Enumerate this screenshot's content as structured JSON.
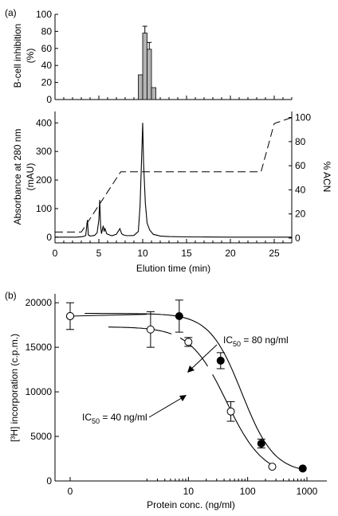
{
  "chart_data": [
    {
      "panel": "(a)",
      "type": "bar",
      "ylabel_lines": [
        "B-cell inhibition",
        "(%)"
      ],
      "ylim": [
        0,
        100
      ],
      "yticks": [
        "0",
        "20",
        "40",
        "60",
        "80",
        "100"
      ],
      "xlim": [
        0,
        27
      ],
      "bins": [
        {
          "x": 9.75,
          "value": 29,
          "err": 0
        },
        {
          "x": 10.25,
          "value": 78,
          "err": 8
        },
        {
          "x": 10.75,
          "value": 59,
          "err": 8
        },
        {
          "x": 11.25,
          "value": 14,
          "err": 0
        }
      ]
    },
    {
      "panel": "(a)",
      "type": "line",
      "xlabel": "Elution time (min)",
      "ylabel_lines": [
        "Absorbance at 280 nm",
        "(mAU)"
      ],
      "y2label": "% ACN",
      "xlim": [
        0,
        27
      ],
      "ylim": [
        -20,
        440
      ],
      "y2lim": [
        -4,
        105
      ],
      "xticks": [
        "0",
        "5",
        "10",
        "15",
        "20",
        "25"
      ],
      "yticks": [
        "0",
        "100",
        "200",
        "300",
        "400"
      ],
      "y2ticks": [
        "0",
        "20",
        "40",
        "60",
        "80",
        "100"
      ],
      "series": [
        {
          "role": "absorbance",
          "x": [
            0,
            2.5,
            3.2,
            3.5,
            3.7,
            3.8,
            4.0,
            4.5,
            4.8,
            5.0,
            5.1,
            5.2,
            5.3,
            5.5,
            5.6,
            5.7,
            5.9,
            6.0,
            6.2,
            6.5,
            7.0,
            7.4,
            7.6,
            7.8,
            8.2,
            9.0,
            9.5,
            9.7,
            9.9,
            10.0,
            10.1,
            10.3,
            10.5,
            10.8,
            11.2,
            12.0,
            13.0,
            15.0,
            20.0,
            27.0
          ],
          "y": [
            0,
            0,
            2,
            6,
            60,
            8,
            4,
            6,
            15,
            60,
            130,
            40,
            12,
            40,
            20,
            30,
            12,
            10,
            8,
            5,
            10,
            30,
            12,
            8,
            5,
            6,
            20,
            110,
            300,
            400,
            260,
            120,
            50,
            25,
            10,
            4,
            2,
            1,
            0,
            0
          ]
        },
        {
          "role": "acn_gradient",
          "axis": "right",
          "x": [
            0,
            3,
            7.5,
            23.5,
            25,
            27
          ],
          "y": [
            5,
            5,
            55,
            55,
            95,
            100
          ]
        }
      ]
    },
    {
      "panel": "(b)",
      "type": "scatter",
      "xlabel": "Protein conc. (ng/ml)",
      "ylabel": "[³H] incorporation (c.p.m.)",
      "xticks": [
        "0",
        "10",
        "100",
        "1000"
      ],
      "yticks": [
        "0",
        "5000",
        "10000",
        "15000",
        "20000"
      ],
      "ylim": [
        0,
        21000
      ],
      "series": [
        {
          "marker": "filled",
          "x": [
            0,
            7,
            35,
            170,
            850
          ],
          "y": [
            18500,
            18500,
            13500,
            4200,
            1400
          ],
          "err": [
            0,
            1800,
            900,
            500,
            0
          ]
        },
        {
          "marker": "open",
          "x": [
            0,
            2.3,
            10,
            52,
            260
          ],
          "y": [
            18500,
            17000,
            15600,
            7800,
            1600
          ],
          "err": [
            1500,
            2000,
            500,
            1100,
            0
          ]
        }
      ],
      "annotations": [
        {
          "pre": "IC",
          "sub": "50",
          "post": " = 80 ng/ml"
        },
        {
          "pre": "IC",
          "sub": "50",
          "post": " = 40 ng/ml"
        }
      ]
    }
  ]
}
